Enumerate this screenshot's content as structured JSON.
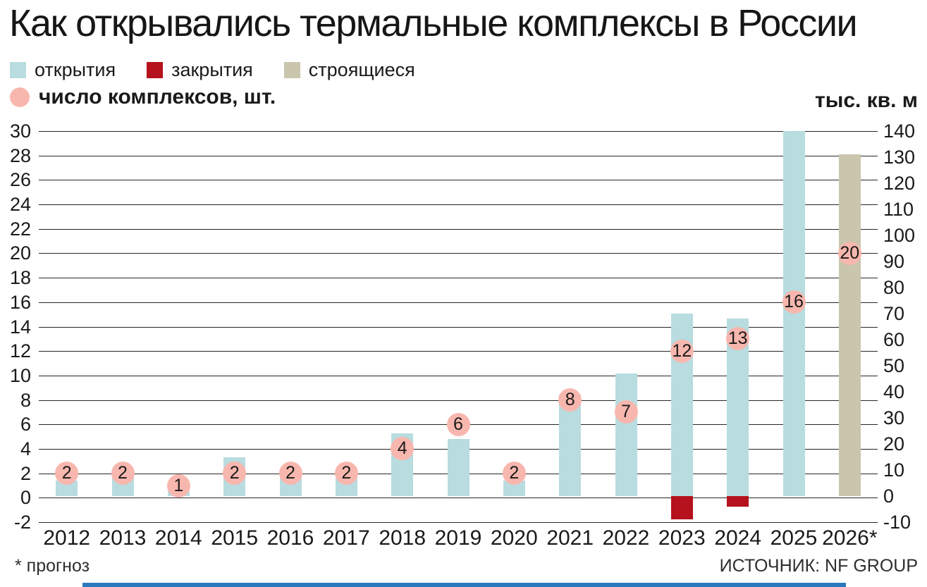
{
  "chart_data": {
    "type": "bar",
    "title": "Как открывались термальные комплексы в России",
    "categories": [
      "2012",
      "2013",
      "2014",
      "2015",
      "2016",
      "2017",
      "2018",
      "2019",
      "2020",
      "2021",
      "2022",
      "2023",
      "2024",
      "2025",
      "2026*"
    ],
    "left_axis": {
      "title": "число комплексов, шт.",
      "min": -2,
      "max": 30,
      "step": 2
    },
    "right_axis": {
      "title": "тыс. кв. м",
      "min": -10,
      "max": 140,
      "step": 10
    },
    "series": [
      {
        "key": "openings",
        "name": "открытия",
        "type": "bar",
        "axis": "right",
        "unit": "тыс. кв. м",
        "color": "#b8dcdf",
        "values": [
          6,
          7,
          2,
          15,
          7,
          7,
          24,
          22,
          6,
          39,
          47,
          70,
          68,
          140,
          0
        ]
      },
      {
        "key": "closures",
        "name": "закрытия",
        "type": "bar",
        "axis": "right",
        "unit": "тыс. кв. м",
        "color": "#b5121d",
        "values": [
          0,
          0,
          0,
          0,
          0,
          0,
          0,
          0,
          0,
          0,
          0,
          -9,
          -4,
          0,
          0
        ]
      },
      {
        "key": "construction",
        "name": "строящиеся",
        "type": "bar",
        "axis": "right",
        "unit": "тыс. кв. м",
        "color": "#cac5ad",
        "values": [
          0,
          0,
          0,
          0,
          0,
          0,
          0,
          0,
          0,
          0,
          0,
          0,
          0,
          0,
          131
        ]
      },
      {
        "key": "count",
        "name": "число комплексов, шт.",
        "type": "point-label",
        "axis": "left",
        "unit": "шт.",
        "color": "#f8b7ae",
        "values": [
          2,
          2,
          1,
          2,
          2,
          2,
          4,
          6,
          2,
          8,
          7,
          12,
          13,
          16,
          20
        ]
      }
    ],
    "grid": true,
    "legend_position": "top",
    "footnote": "* прогноз",
    "source": "ИСТОЧНИК: NF GROUP"
  },
  "colors": {
    "grid": "#262626",
    "text": "#1a1a1a",
    "accent_strip": "#2a79be"
  }
}
